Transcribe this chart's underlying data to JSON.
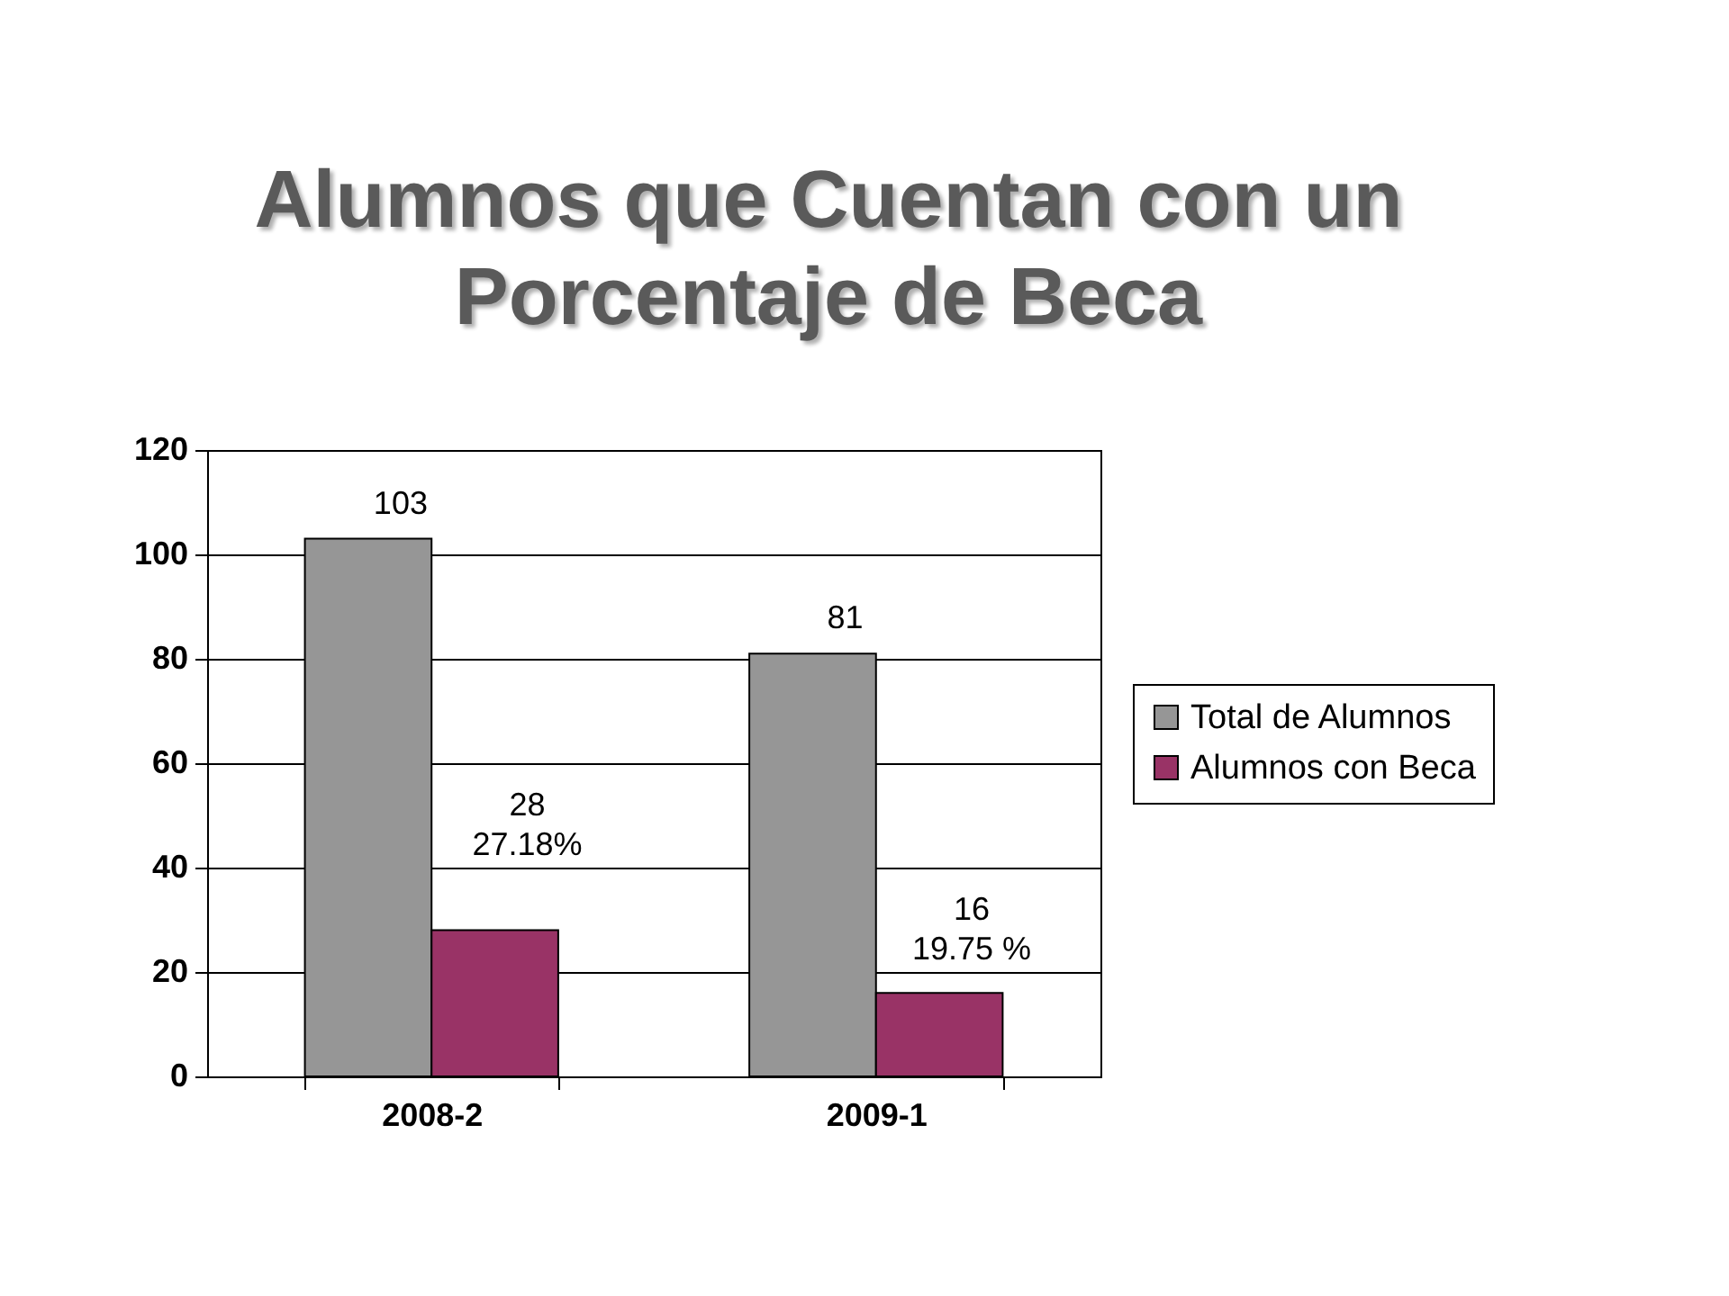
{
  "chart_data": {
    "type": "bar",
    "title": "Alumnos que Cuentan con un Porcentaje de Beca",
    "categories": [
      "2008-2",
      "2009-1"
    ],
    "series": [
      {
        "name": "Total de Alumnos",
        "color": "#969696",
        "values": [
          103,
          81
        ],
        "value_labels": [
          "103",
          "81"
        ]
      },
      {
        "name": "Alumnos con Beca",
        "color": "#993366",
        "values": [
          28,
          16
        ],
        "value_labels": [
          "28\n27.18%",
          "16\n19.75 %"
        ]
      }
    ],
    "ylim": [
      0,
      120
    ],
    "yticks": [
      0,
      20,
      40,
      60,
      80,
      100,
      120
    ],
    "grid": "y",
    "legend": "right"
  }
}
